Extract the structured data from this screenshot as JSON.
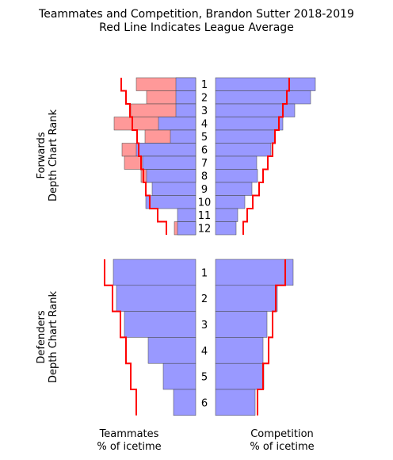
{
  "chart_data": {
    "type": "bar",
    "title_line1": "Teammates and Competition, Brandon Sutter 2018-2019",
    "title_line2": "Red Line Indicates League Average",
    "panels": {
      "forwards_label_line1": "Forwards",
      "forwards_label_line2": "Depth Chart Rank",
      "defenders_label_line1": "Defenders",
      "defenders_label_line2": "Depth Chart Rank"
    },
    "x_labels": {
      "teammates_line1": "Teammates",
      "teammates_line2": "% of icetime",
      "competition_line1": "Competition",
      "competition_line2": "% of icetime"
    },
    "colors": {
      "bar": "#9999ff",
      "excess": "#ff9999",
      "average_line": "#ff0000",
      "edge": "#444444"
    },
    "forwards": {
      "ranks": [
        "1",
        "2",
        "3",
        "4",
        "5",
        "6",
        "7",
        "8",
        "9",
        "10",
        "11",
        "12"
      ],
      "teammates_blue": [
        25,
        25,
        25,
        47,
        32,
        75,
        67,
        62,
        55,
        63,
        23,
        23
      ],
      "teammates_pink": [
        75,
        62,
        82,
        103,
        64,
        93,
        90,
        69,
        0,
        0,
        0,
        27
      ],
      "teammates_avg": [
        94,
        88,
        83,
        80,
        74,
        72,
        69,
        66,
        63,
        58,
        48,
        37
      ],
      "competition": [
        126,
        120,
        100,
        85,
        75,
        70,
        52,
        53,
        46,
        37,
        28,
        26
      ],
      "competition_avg": [
        93,
        90,
        85,
        80,
        75,
        72,
        66,
        60,
        55,
        47,
        40,
        35
      ]
    },
    "defenders": {
      "ranks": [
        "1",
        "2",
        "3",
        "4",
        "5",
        "6"
      ],
      "teammates": [
        104,
        100,
        90,
        60,
        41,
        28
      ],
      "teammates_avg": [
        115,
        105,
        95,
        88,
        82,
        75
      ],
      "competition": [
        98,
        78,
        65,
        60,
        61,
        50
      ],
      "competition_avg": [
        88,
        76,
        72,
        67,
        60,
        53
      ]
    }
  }
}
